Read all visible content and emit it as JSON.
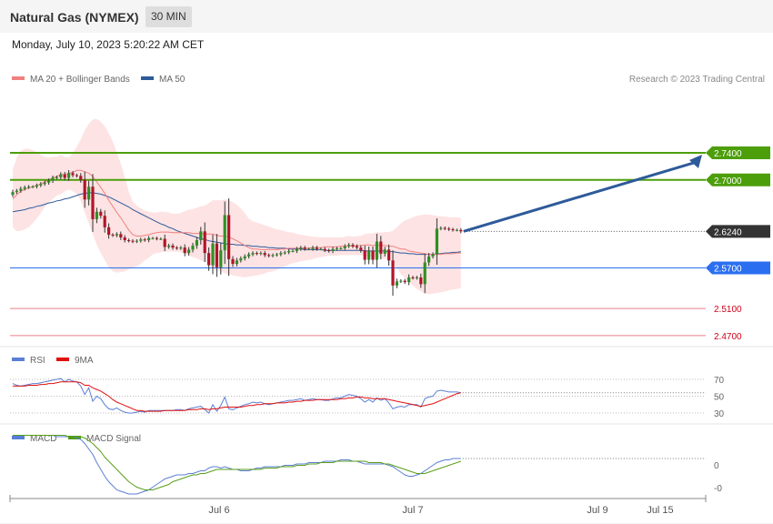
{
  "header": {
    "title": "Natural Gas (NYMEX)",
    "timeframe": "30 MIN"
  },
  "date": "Monday, July 10, 2023 5:20:22 AM CET",
  "legend": {
    "ma20": {
      "label": "MA 20 + Bollinger Bands",
      "color": "#f08080"
    },
    "ma50": {
      "label": "MA 50",
      "color": "#2e5a9a"
    },
    "credit": "Research © 2023 Trading Central"
  },
  "rsi_legend": {
    "rsi": "RSI",
    "ma": "9MA"
  },
  "macd_legend": {
    "macd": "MACD",
    "signal": "MACD Signal"
  },
  "chart_data": {
    "type": "candlestick",
    "price_range": [
      2.45,
      2.81
    ],
    "last_price": 2.624,
    "levels": [
      {
        "value": "2.7400",
        "kind": "resistance",
        "color": "#4c9e0a"
      },
      {
        "value": "2.7000",
        "kind": "resistance",
        "color": "#4c9e0a"
      },
      {
        "value": "2.6240",
        "kind": "last",
        "color": "#333333"
      },
      {
        "value": "2.5700",
        "kind": "pivot",
        "color": "#2b6ff0"
      },
      {
        "value": "2.5100",
        "kind": "support",
        "color": "#e8808a"
      },
      {
        "value": "2.4700",
        "kind": "support",
        "color": "#e8808a"
      }
    ],
    "x_labels": [
      "Jul 6",
      "Jul 7",
      "Jul 9",
      "Jul 15"
    ],
    "closes": [
      2.682,
      2.684,
      2.687,
      2.689,
      2.69,
      2.69,
      2.692,
      2.694,
      2.696,
      2.699,
      2.703,
      2.704,
      2.708,
      2.703,
      2.71,
      2.707,
      2.706,
      2.7,
      2.671,
      2.69,
      2.642,
      2.653,
      2.647,
      2.63,
      2.619,
      2.618,
      2.62,
      2.615,
      2.611,
      2.61,
      2.609,
      2.61,
      2.612,
      2.611,
      2.614,
      2.614,
      2.613,
      2.613,
      2.601,
      2.603,
      2.6,
      2.599,
      2.6,
      2.592,
      2.597,
      2.603,
      2.611,
      2.624,
      2.592,
      2.574,
      2.606,
      2.571,
      2.596,
      2.648,
      2.583,
      2.576,
      2.581,
      2.584,
      2.587,
      2.59,
      2.592,
      2.591,
      2.592,
      2.589,
      2.588,
      2.589,
      2.59,
      2.592,
      2.593,
      2.595,
      2.595,
      2.598,
      2.6,
      2.598,
      2.598,
      2.6,
      2.598,
      2.598,
      2.596,
      2.595,
      2.598,
      2.599,
      2.599,
      2.602,
      2.604,
      2.602,
      2.6,
      2.596,
      2.582,
      2.595,
      2.582,
      2.609,
      2.591,
      2.597,
      2.581,
      2.544,
      2.55,
      2.551,
      2.549,
      2.556,
      2.555,
      2.556,
      2.546,
      2.578,
      2.587,
      2.59,
      2.628,
      2.629,
      2.628,
      2.627,
      2.626,
      2.626,
      2.624
    ],
    "bb_upper": [
      2.715,
      2.733,
      2.743,
      2.746,
      2.746,
      2.744,
      2.741,
      2.737,
      2.734,
      2.733,
      2.734,
      2.734,
      2.737,
      2.734,
      2.733,
      2.74,
      2.749,
      2.76,
      2.773,
      2.783,
      2.789,
      2.79,
      2.786,
      2.779,
      2.769,
      2.757,
      2.741,
      2.724,
      2.704,
      2.683,
      2.668,
      2.662,
      2.658,
      2.655,
      2.653,
      2.652,
      2.652,
      2.653,
      2.653,
      2.652,
      2.65,
      2.65,
      2.651,
      2.654,
      2.656,
      2.657,
      2.659,
      2.661,
      2.662,
      2.666,
      2.67,
      2.67,
      2.67,
      2.671,
      2.67,
      2.667,
      2.663,
      2.658,
      2.651,
      2.643,
      2.639,
      2.637,
      2.635,
      2.633,
      2.631,
      2.629,
      2.627,
      2.626,
      2.624,
      2.623,
      2.622,
      2.62,
      2.619,
      2.618,
      2.617,
      2.616,
      2.616,
      2.615,
      2.615,
      2.615,
      2.615,
      2.615,
      2.615,
      2.616,
      2.617,
      2.616,
      2.617,
      2.617,
      2.62,
      2.621,
      2.621,
      2.623,
      2.622,
      2.623,
      2.623,
      2.625,
      2.63,
      2.636,
      2.64,
      2.642,
      2.645,
      2.647,
      2.648,
      2.649,
      2.649,
      2.648,
      2.647,
      2.646,
      2.646,
      2.645,
      2.645,
      2.645,
      2.644
    ],
    "bb_lower": [
      2.63,
      2.624,
      2.625,
      2.627,
      2.63,
      2.636,
      2.643,
      2.651,
      2.66,
      2.667,
      2.672,
      2.677,
      2.679,
      2.683,
      2.686,
      2.683,
      2.679,
      2.669,
      2.652,
      2.636,
      2.62,
      2.604,
      2.592,
      2.582,
      2.571,
      2.565,
      2.563,
      2.564,
      2.565,
      2.568,
      2.57,
      2.572,
      2.576,
      2.581,
      2.585,
      2.59,
      2.592,
      2.593,
      2.594,
      2.594,
      2.594,
      2.594,
      2.593,
      2.591,
      2.588,
      2.586,
      2.584,
      2.581,
      2.579,
      2.575,
      2.57,
      2.566,
      2.565,
      2.562,
      2.561,
      2.559,
      2.558,
      2.557,
      2.556,
      2.557,
      2.558,
      2.559,
      2.56,
      2.562,
      2.564,
      2.565,
      2.567,
      2.57,
      2.572,
      2.575,
      2.577,
      2.578,
      2.58,
      2.581,
      2.582,
      2.583,
      2.585,
      2.586,
      2.587,
      2.588,
      2.588,
      2.588,
      2.589,
      2.589,
      2.589,
      2.589,
      2.589,
      2.589,
      2.588,
      2.587,
      2.586,
      2.585,
      2.584,
      2.583,
      2.582,
      2.579,
      2.57,
      2.561,
      2.555,
      2.549,
      2.544,
      2.539,
      2.535,
      2.532,
      2.531,
      2.532,
      2.533,
      2.534,
      2.535,
      2.537,
      2.538,
      2.539,
      2.54
    ],
    "ma50": [
      2.653,
      2.654,
      2.655,
      2.656,
      2.658,
      2.659,
      2.661,
      2.662,
      2.664,
      2.666,
      2.667,
      2.669,
      2.67,
      2.672,
      2.673,
      2.675,
      2.677,
      2.679,
      2.68,
      2.681,
      2.681,
      2.68,
      2.679,
      2.677,
      2.675,
      2.672,
      2.669,
      2.666,
      2.663,
      2.66,
      2.656,
      2.653,
      2.65,
      2.647,
      2.644,
      2.641,
      2.638,
      2.635,
      2.633,
      2.63,
      2.628,
      2.625,
      2.623,
      2.621,
      2.619,
      2.617,
      2.615,
      2.613,
      2.612,
      2.61,
      2.609,
      2.608,
      2.607,
      2.606,
      2.605,
      2.605,
      2.604,
      2.604,
      2.603,
      2.603,
      2.602,
      2.602,
      2.601,
      2.601,
      2.6,
      2.6,
      2.599,
      2.599,
      2.599,
      2.598,
      2.598,
      2.598,
      2.598,
      2.597,
      2.597,
      2.597,
      2.597,
      2.597,
      2.596,
      2.596,
      2.596,
      2.596,
      2.596,
      2.596,
      2.596,
      2.596,
      2.596,
      2.596,
      2.595,
      2.595,
      2.595,
      2.595,
      2.595,
      2.595,
      2.594,
      2.594,
      2.593,
      2.592,
      2.592,
      2.591,
      2.591,
      2.59,
      2.59,
      2.59,
      2.59,
      2.59,
      2.591,
      2.591,
      2.592,
      2.592,
      2.593,
      2.593,
      2.594
    ],
    "ma20": [
      2.672,
      2.678,
      2.683,
      2.686,
      2.688,
      2.69,
      2.692,
      2.694,
      2.697,
      2.7,
      2.703,
      2.705,
      2.708,
      2.708,
      2.71,
      2.711,
      2.714,
      2.714,
      2.712,
      2.71,
      2.705,
      2.697,
      2.689,
      2.68,
      2.67,
      2.661,
      2.652,
      2.644,
      2.635,
      2.626,
      2.619,
      2.617,
      2.617,
      2.618,
      2.619,
      2.621,
      2.622,
      2.623,
      2.623,
      2.623,
      2.622,
      2.622,
      2.622,
      2.622,
      2.622,
      2.621,
      2.621,
      2.621,
      2.62,
      2.62,
      2.62,
      2.618,
      2.617,
      2.617,
      2.616,
      2.613,
      2.61,
      2.607,
      2.603,
      2.6,
      2.598,
      2.598,
      2.597,
      2.597,
      2.597,
      2.597,
      2.597,
      2.598,
      2.598,
      2.599,
      2.599,
      2.599,
      2.599,
      2.599,
      2.599,
      2.6,
      2.6,
      2.6,
      2.601,
      2.601,
      2.601,
      2.601,
      2.602,
      2.602,
      2.603,
      2.602,
      2.603,
      2.603,
      2.604,
      2.604,
      2.603,
      2.604,
      2.603,
      2.603,
      2.602,
      2.602,
      2.6,
      2.598,
      2.598,
      2.595,
      2.594,
      2.593,
      2.592,
      2.591,
      2.59,
      2.59,
      2.59,
      2.59,
      2.591,
      2.591,
      2.591,
      2.592,
      2.592
    ],
    "rsi": [
      65,
      63,
      62,
      63,
      64,
      65,
      65,
      66,
      67,
      68,
      69,
      70,
      71,
      67,
      70,
      68,
      67,
      62,
      52,
      60,
      44,
      50,
      47,
      40,
      35,
      34,
      36,
      33,
      31,
      30,
      30,
      31,
      32,
      31,
      33,
      33,
      33,
      33,
      33,
      33,
      33,
      34,
      34,
      33,
      35,
      36,
      37,
      38,
      34,
      30,
      40,
      32,
      39,
      49,
      35,
      34,
      36,
      38,
      40,
      41,
      43,
      42,
      43,
      41,
      40,
      41,
      42,
      43,
      44,
      45,
      45,
      46,
      47,
      45,
      46,
      47,
      46,
      46,
      45,
      45,
      47,
      48,
      48,
      50,
      52,
      51,
      50,
      47,
      43,
      46,
      43,
      48,
      45,
      47,
      42,
      35,
      37,
      38,
      37,
      40,
      40,
      40,
      37,
      47,
      49,
      50,
      56,
      57,
      56,
      55,
      55,
      55,
      54
    ],
    "rsi_ma": [
      62,
      62,
      62,
      62,
      63,
      63,
      63,
      64,
      64,
      65,
      65,
      66,
      67,
      67,
      67,
      67,
      67,
      66,
      63,
      63,
      60,
      58,
      56,
      53,
      50,
      46,
      43,
      41,
      39,
      37,
      35,
      33,
      33,
      32,
      32,
      32,
      32,
      32,
      33,
      33,
      33,
      33,
      33,
      33,
      34,
      34,
      34,
      35,
      35,
      34,
      35,
      35,
      36,
      37,
      37,
      37,
      37,
      37,
      38,
      39,
      39,
      40,
      40,
      41,
      41,
      41,
      42,
      42,
      42,
      43,
      43,
      44,
      44,
      45,
      45,
      45,
      46,
      46,
      46,
      46,
      46,
      46,
      47,
      47,
      48,
      48,
      49,
      49,
      48,
      48,
      47,
      47,
      47,
      47,
      46,
      45,
      44,
      43,
      42,
      41,
      40,
      39,
      38,
      39,
      40,
      41,
      43,
      45,
      47,
      49,
      51,
      53,
      54
    ],
    "macd": [
      0.021,
      0.021,
      0.021,
      0.021,
      0.021,
      0.021,
      0.021,
      0.021,
      0.021,
      0.021,
      0.021,
      0.02,
      0.02,
      0.02,
      0.02,
      0.02,
      0.019,
      0.018,
      0.015,
      0.011,
      0.007,
      0.001,
      -0.004,
      -0.009,
      -0.013,
      -0.016,
      -0.019,
      -0.02,
      -0.021,
      -0.022,
      -0.022,
      -0.022,
      -0.021,
      -0.02,
      -0.019,
      -0.017,
      -0.015,
      -0.013,
      -0.011,
      -0.01,
      -0.009,
      -0.008,
      -0.008,
      -0.008,
      -0.007,
      -0.007,
      -0.006,
      -0.005,
      -0.005,
      -0.003,
      -0.002,
      -0.002,
      -0.003,
      -0.002,
      -0.003,
      -0.004,
      -0.004,
      -0.005,
      -0.005,
      -0.005,
      -0.004,
      -0.003,
      -0.003,
      -0.002,
      -0.002,
      -0.002,
      -0.002,
      -0.002,
      -0.001,
      -0.001,
      -0.001,
      0.0,
      0.0,
      0.0,
      0.001,
      0.001,
      0.001,
      0.001,
      0.002,
      0.002,
      0.002,
      0.002,
      0.003,
      0.003,
      0.003,
      0.002,
      0.002,
      0.001,
      0.0,
      0.0,
      0.0,
      0.0,
      0.0,
      0.0,
      -0.001,
      -0.002,
      -0.004,
      -0.006,
      -0.008,
      -0.009,
      -0.009,
      -0.008,
      -0.007,
      -0.005,
      -0.003,
      -0.001,
      0.001,
      0.002,
      0.003,
      0.003,
      0.004,
      0.004,
      0.004
    ],
    "macd_signal": [
      0.021,
      0.021,
      0.021,
      0.021,
      0.021,
      0.021,
      0.021,
      0.021,
      0.021,
      0.021,
      0.021,
      0.021,
      0.021,
      0.021,
      0.02,
      0.02,
      0.02,
      0.02,
      0.019,
      0.017,
      0.015,
      0.012,
      0.009,
      0.005,
      0.002,
      -0.001,
      -0.004,
      -0.007,
      -0.01,
      -0.013,
      -0.015,
      -0.017,
      -0.018,
      -0.019,
      -0.019,
      -0.019,
      -0.018,
      -0.017,
      -0.016,
      -0.015,
      -0.013,
      -0.012,
      -0.011,
      -0.01,
      -0.009,
      -0.008,
      -0.008,
      -0.007,
      -0.007,
      -0.006,
      -0.005,
      -0.004,
      -0.004,
      -0.004,
      -0.004,
      -0.004,
      -0.004,
      -0.004,
      -0.004,
      -0.004,
      -0.004,
      -0.004,
      -0.004,
      -0.003,
      -0.003,
      -0.003,
      -0.003,
      -0.002,
      -0.002,
      -0.002,
      -0.002,
      -0.001,
      -0.001,
      -0.001,
      0.0,
      0.0,
      0.0,
      0.001,
      0.001,
      0.001,
      0.001,
      0.002,
      0.002,
      0.002,
      0.002,
      0.002,
      0.002,
      0.002,
      0.002,
      0.001,
      0.001,
      0.001,
      0.001,
      0.0,
      0.0,
      -0.001,
      -0.002,
      -0.003,
      -0.004,
      -0.005,
      -0.006,
      -0.007,
      -0.007,
      -0.007,
      -0.006,
      -0.005,
      -0.004,
      -0.003,
      -0.002,
      -0.001,
      0.0,
      0.001,
      0.002
    ],
    "rsi_ticks": [
      "70",
      "50",
      "30"
    ],
    "macd_ticks": [
      "0",
      "-0"
    ]
  }
}
